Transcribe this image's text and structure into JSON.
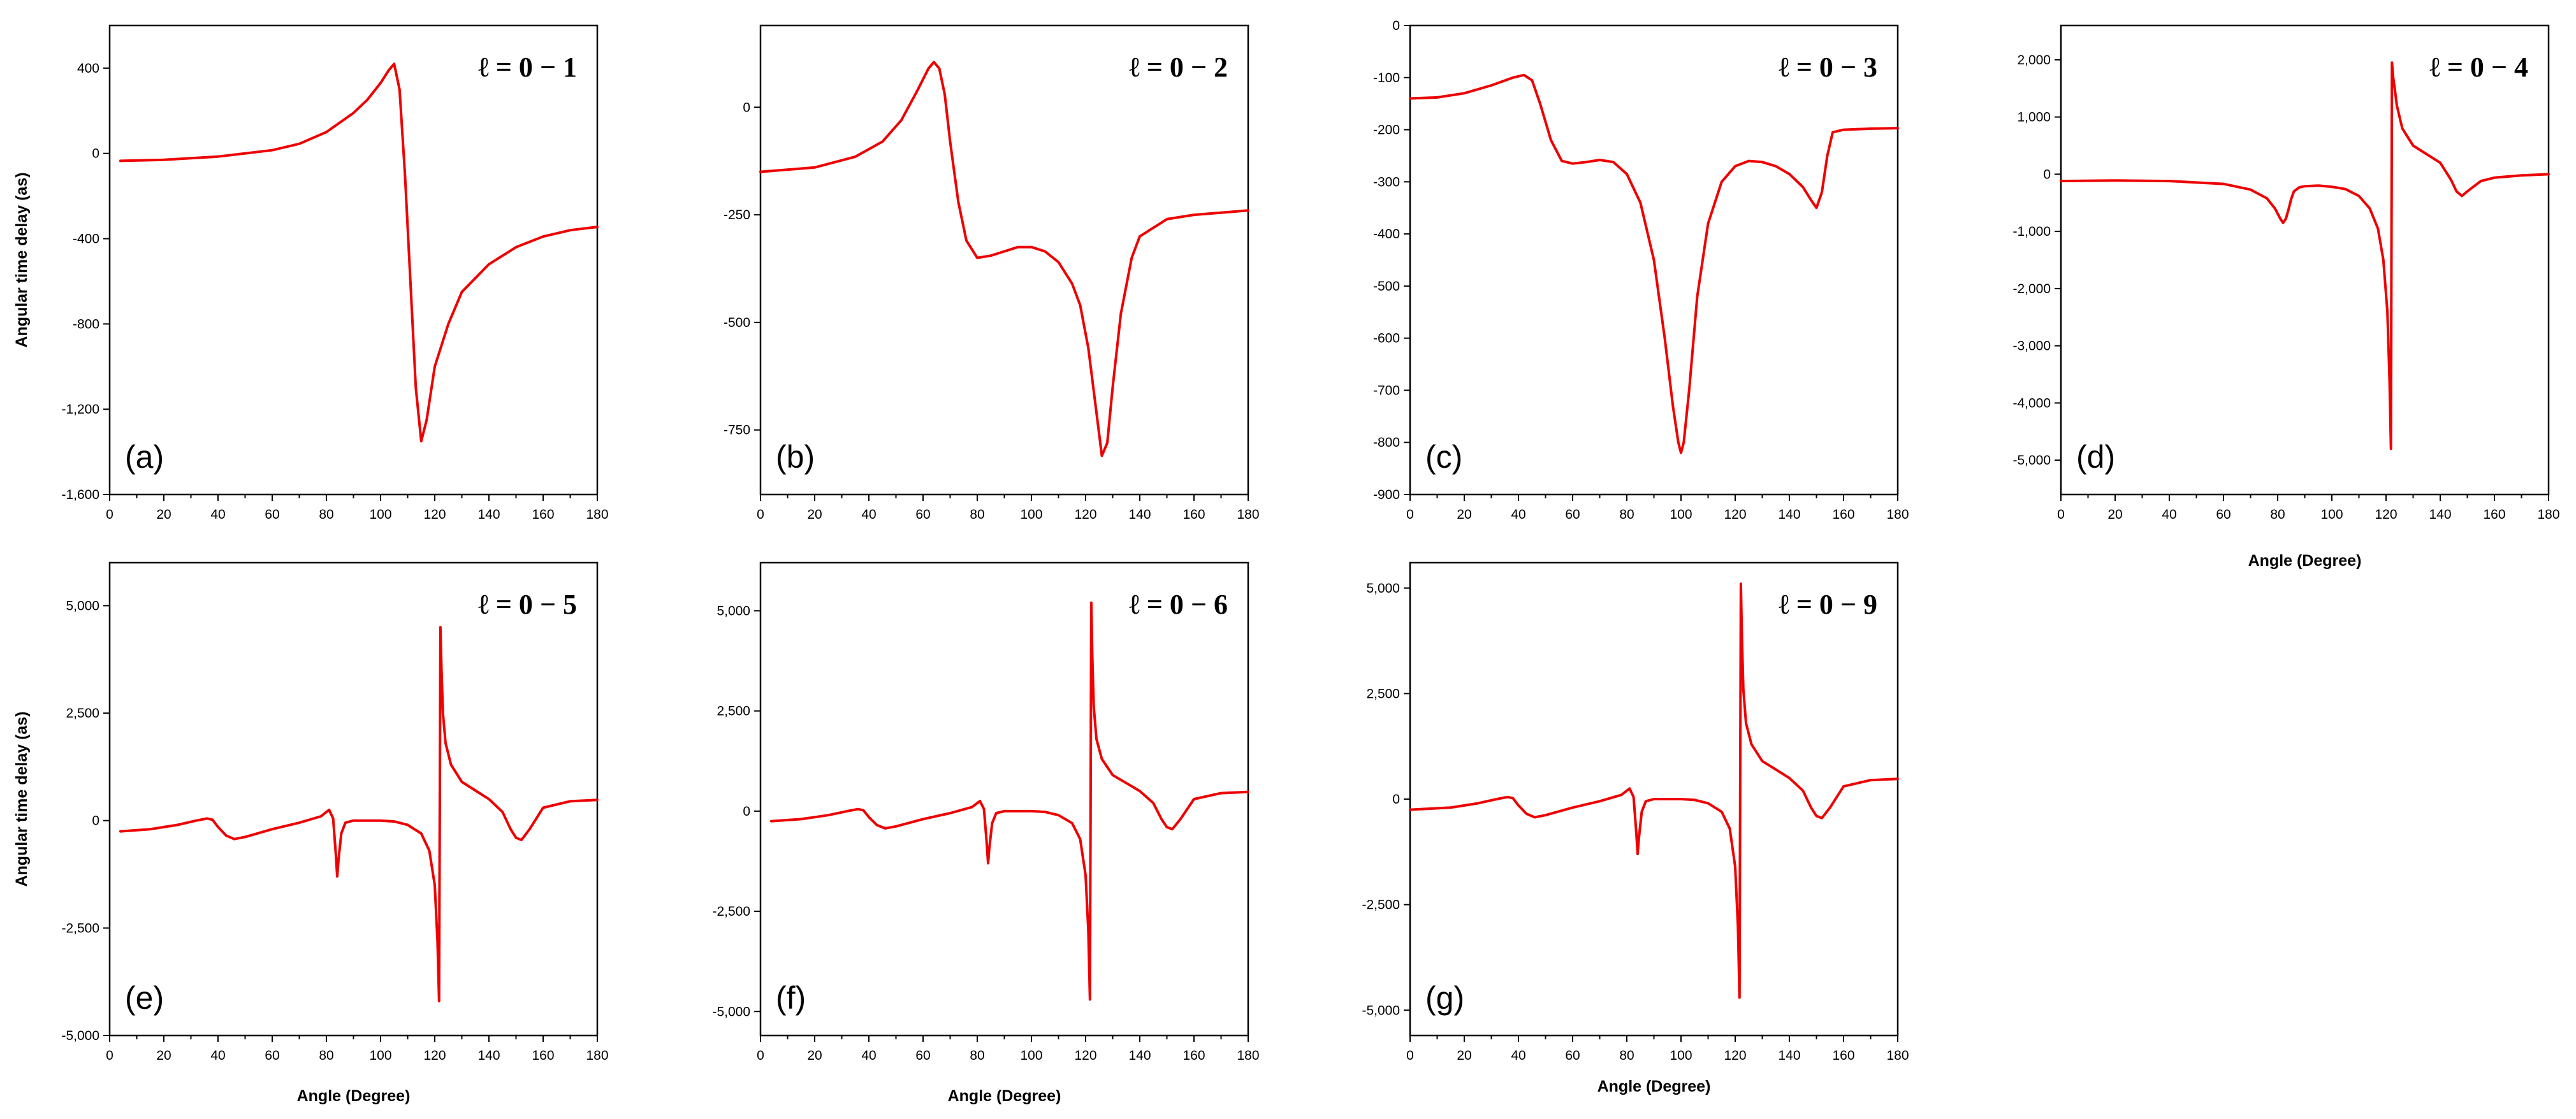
{
  "chart_data": [
    {
      "id": "a",
      "type": "line",
      "panel_label": "(a)",
      "legend": "ℓ = 0 − 1",
      "xlabel": "",
      "ylabel": "Angular time delay (as)",
      "xlim": [
        0,
        180
      ],
      "ylim": [
        -1600,
        600
      ],
      "xticks": [
        0,
        20,
        40,
        60,
        80,
        100,
        120,
        140,
        160,
        180
      ],
      "xtick_labels": [
        "0",
        "20",
        "40",
        "60",
        "80",
        "100",
        "120",
        "140",
        "160",
        "180"
      ],
      "yticks": [
        400,
        0,
        -400,
        -800,
        -1200,
        -1600
      ],
      "ytick_labels": [
        "400",
        "0",
        "-400",
        "-800",
        "-1,200",
        "-1,600"
      ],
      "series": [
        {
          "name": "delay",
          "color": "#ee0000",
          "x": [
            4,
            20,
            40,
            60,
            70,
            80,
            90,
            95,
            100,
            103,
            105,
            107,
            109,
            111,
            113,
            115,
            117,
            120,
            125,
            130,
            140,
            150,
            160,
            170,
            180
          ],
          "y": [
            -35,
            -30,
            -15,
            15,
            45,
            100,
            190,
            250,
            330,
            390,
            420,
            300,
            -100,
            -600,
            -1100,
            -1350,
            -1250,
            -1000,
            -800,
            -650,
            -520,
            -440,
            -390,
            -360,
            -345
          ]
        }
      ]
    },
    {
      "id": "b",
      "type": "line",
      "panel_label": "(b)",
      "legend": "ℓ = 0 − 2",
      "xlabel": "",
      "ylabel": "",
      "xlim": [
        0,
        180
      ],
      "ylim": [
        -900,
        190
      ],
      "xticks": [
        0,
        20,
        40,
        60,
        80,
        100,
        120,
        140,
        160,
        180
      ],
      "xtick_labels": [
        "0",
        "20",
        "40",
        "60",
        "80",
        "100",
        "120",
        "140",
        "160",
        "180"
      ],
      "yticks": [
        0,
        -250,
        -500,
        -750
      ],
      "ytick_labels": [
        "0",
        "-250",
        "-500",
        "-750"
      ],
      "series": [
        {
          "name": "delay",
          "color": "#ee0000",
          "x": [
            0,
            20,
            35,
            45,
            52,
            58,
            62,
            64,
            66,
            68,
            70,
            73,
            76,
            80,
            85,
            90,
            95,
            100,
            105,
            110,
            115,
            118,
            121,
            123,
            125,
            126,
            128,
            130,
            133,
            137,
            140,
            150,
            160,
            170,
            180
          ],
          "y": [
            -150,
            -140,
            -115,
            -80,
            -30,
            40,
            90,
            105,
            90,
            30,
            -80,
            -220,
            -310,
            -350,
            -345,
            -335,
            -325,
            -325,
            -335,
            -360,
            -410,
            -460,
            -560,
            -660,
            -760,
            -810,
            -780,
            -650,
            -480,
            -350,
            -300,
            -260,
            -250,
            -245,
            -240
          ]
        }
      ]
    },
    {
      "id": "c",
      "type": "line",
      "panel_label": "(c)",
      "legend": "ℓ = 0 − 3",
      "xlabel": "",
      "ylabel": "",
      "xlim": [
        0,
        180
      ],
      "ylim": [
        -900,
        0
      ],
      "xticks": [
        0,
        20,
        40,
        60,
        80,
        100,
        120,
        140,
        160,
        180
      ],
      "xtick_labels": [
        "0",
        "20",
        "40",
        "60",
        "80",
        "100",
        "120",
        "140",
        "160",
        "180"
      ],
      "yticks": [
        0,
        -100,
        -200,
        -300,
        -400,
        -500,
        -600,
        -700,
        -800,
        -900
      ],
      "ytick_labels": [
        "0",
        "-100",
        "-200",
        "-300",
        "-400",
        "-500",
        "-600",
        "-700",
        "-800",
        "-900"
      ],
      "series": [
        {
          "name": "delay",
          "color": "#ee0000",
          "x": [
            0,
            10,
            20,
            30,
            38,
            42,
            45,
            48,
            52,
            56,
            60,
            65,
            70,
            75,
            80,
            85,
            90,
            94,
            97,
            99,
            100,
            101,
            103,
            106,
            110,
            115,
            120,
            125,
            130,
            135,
            140,
            145,
            148,
            150,
            152,
            154,
            156,
            160,
            170,
            180
          ],
          "y": [
            -140,
            -138,
            -130,
            -115,
            -100,
            -95,
            -105,
            -150,
            -220,
            -260,
            -265,
            -262,
            -258,
            -262,
            -285,
            -340,
            -450,
            -600,
            -730,
            -800,
            -820,
            -800,
            -700,
            -520,
            -380,
            -300,
            -270,
            -260,
            -262,
            -270,
            -285,
            -310,
            -335,
            -350,
            -320,
            -250,
            -205,
            -200,
            -198,
            -197
          ]
        }
      ]
    },
    {
      "id": "d",
      "type": "line",
      "panel_label": "(d)",
      "legend": "ℓ = 0 − 4",
      "xlabel": "Angle (Degree)",
      "ylabel": "",
      "xlim": [
        0,
        180
      ],
      "ylim": [
        -5600,
        2600
      ],
      "xticks": [
        0,
        20,
        40,
        60,
        80,
        100,
        120,
        140,
        160,
        180
      ],
      "xtick_labels": [
        "0",
        "20",
        "40",
        "60",
        "80",
        "100",
        "120",
        "140",
        "160",
        "180"
      ],
      "yticks": [
        2000,
        1000,
        0,
        -1000,
        -2000,
        -3000,
        -4000,
        -5000
      ],
      "ytick_labels": [
        "2,000",
        "1,000",
        "0",
        "-1,000",
        "-2,000",
        "-3,000",
        "-4,000",
        "-5,000"
      ],
      "series": [
        {
          "name": "delay",
          "color": "#ee0000",
          "x": [
            0,
            20,
            40,
            60,
            70,
            76,
            79,
            81,
            82,
            83,
            84,
            85,
            86,
            88,
            90,
            95,
            100,
            105,
            110,
            114,
            117,
            119,
            120.5,
            121.3,
            121.8,
            122.2,
            122.6,
            123.2,
            124,
            126,
            130,
            135,
            140,
            144,
            146,
            148,
            150,
            155,
            160,
            170,
            180
          ],
          "y": [
            -120,
            -110,
            -120,
            -170,
            -270,
            -420,
            -600,
            -780,
            -850,
            -780,
            -620,
            -430,
            -300,
            -230,
            -210,
            -200,
            -220,
            -260,
            -380,
            -600,
            -950,
            -1500,
            -2400,
            -3600,
            -4800,
            1950,
            1700,
            1500,
            1200,
            800,
            500,
            350,
            200,
            -100,
            -300,
            -380,
            -300,
            -120,
            -60,
            -20,
            0
          ]
        }
      ]
    },
    {
      "id": "e",
      "type": "line",
      "panel_label": "(e)",
      "legend": "ℓ = 0 − 5",
      "xlabel": "Angle (Degree)",
      "ylabel": "Angular time delay (as)",
      "xlim": [
        0,
        180
      ],
      "ylim": [
        -5000,
        6000
      ],
      "xticks": [
        0,
        20,
        40,
        60,
        80,
        100,
        120,
        140,
        160,
        180
      ],
      "xtick_labels": [
        "0",
        "20",
        "40",
        "60",
        "80",
        "100",
        "120",
        "140",
        "160",
        "180"
      ],
      "yticks": [
        5000,
        2500,
        0,
        -2500,
        -5000
      ],
      "ytick_labels": [
        "5,000",
        "2,500",
        "0",
        "-2,500",
        "-5,000"
      ],
      "series": [
        {
          "name": "delay",
          "color": "#ee0000",
          "x": [
            4,
            15,
            25,
            32,
            36,
            38,
            40,
            43,
            46,
            50,
            60,
            70,
            78,
            81,
            82.5,
            83.5,
            84,
            84.5,
            85.5,
            87,
            90,
            95,
            100,
            105,
            110,
            115,
            118,
            120,
            121,
            121.6,
            122.1,
            122.5,
            123,
            124,
            126,
            130,
            135,
            140,
            145,
            148,
            150,
            152,
            155,
            160,
            170,
            180
          ],
          "y": [
            -250,
            -200,
            -100,
            0,
            50,
            20,
            -150,
            -350,
            -430,
            -380,
            -200,
            -50,
            100,
            250,
            50,
            -800,
            -1300,
            -900,
            -300,
            -50,
            0,
            0,
            0,
            -20,
            -100,
            -300,
            -700,
            -1500,
            -2800,
            -4200,
            4500,
            3500,
            2500,
            1800,
            1300,
            900,
            700,
            500,
            200,
            -200,
            -400,
            -450,
            -200,
            300,
            450,
            480
          ]
        }
      ]
    },
    {
      "id": "f",
      "type": "line",
      "panel_label": "(f)",
      "legend": "ℓ = 0 − 6",
      "xlabel": "Angle (Degree)",
      "ylabel": "",
      "xlim": [
        0,
        180
      ],
      "ylim": [
        -5600,
        6200
      ],
      "xticks": [
        0,
        20,
        40,
        60,
        80,
        100,
        120,
        140,
        160,
        180
      ],
      "xtick_labels": [
        "0",
        "20",
        "40",
        "60",
        "80",
        "100",
        "120",
        "140",
        "160",
        "180"
      ],
      "yticks": [
        5000,
        2500,
        0,
        -2500,
        -5000
      ],
      "ytick_labels": [
        "5,000",
        "2,500",
        "0",
        "-2,500",
        "-5,000"
      ],
      "series": [
        {
          "name": "delay",
          "color": "#ee0000",
          "x": [
            4,
            15,
            25,
            32,
            36,
            38,
            40,
            43,
            46,
            50,
            60,
            70,
            78,
            81,
            82.5,
            83.5,
            84,
            84.5,
            85.5,
            87,
            90,
            95,
            100,
            105,
            110,
            115,
            118,
            120,
            121,
            121.6,
            122.1,
            122.5,
            123,
            124,
            126,
            130,
            135,
            140,
            145,
            148,
            150,
            152,
            155,
            160,
            170,
            180
          ],
          "y": [
            -250,
            -200,
            -100,
            0,
            50,
            20,
            -150,
            -350,
            -430,
            -380,
            -200,
            -50,
            100,
            250,
            50,
            -800,
            -1300,
            -900,
            -300,
            -50,
            0,
            0,
            0,
            -20,
            -100,
            -300,
            -700,
            -1600,
            -3000,
            -4700,
            5200,
            3800,
            2600,
            1800,
            1300,
            900,
            700,
            500,
            200,
            -200,
            -400,
            -450,
            -200,
            300,
            450,
            480
          ]
        }
      ]
    },
    {
      "id": "g",
      "type": "line",
      "panel_label": "(g)",
      "legend": "ℓ = 0 − 9",
      "xlabel": "Angle (Degree)",
      "ylabel": "",
      "xlim": [
        0,
        180
      ],
      "ylim": [
        -5600,
        5600
      ],
      "xticks": [
        0,
        20,
        40,
        60,
        80,
        100,
        120,
        140,
        160,
        180
      ],
      "xtick_labels": [
        "0",
        "20",
        "40",
        "60",
        "80",
        "100",
        "120",
        "140",
        "160",
        "180"
      ],
      "yticks": [
        5000,
        2500,
        0,
        -2500,
        -5000
      ],
      "ytick_labels": [
        "5,000",
        "2,500",
        "0",
        "-2,500",
        "-5,000"
      ],
      "series": [
        {
          "name": "delay",
          "color": "#ee0000",
          "x": [
            0,
            15,
            25,
            32,
            36,
            38,
            40,
            43,
            46,
            50,
            60,
            70,
            78,
            81,
            82.5,
            83.5,
            84,
            84.5,
            85.5,
            87,
            90,
            95,
            100,
            105,
            110,
            115,
            118,
            120,
            121,
            121.6,
            122.1,
            122.5,
            123,
            124,
            126,
            130,
            135,
            140,
            145,
            148,
            150,
            152,
            155,
            160,
            170,
            180
          ],
          "y": [
            -250,
            -200,
            -100,
            0,
            50,
            20,
            -150,
            -350,
            -430,
            -380,
            -200,
            -50,
            100,
            250,
            50,
            -800,
            -1300,
            -900,
            -300,
            -50,
            0,
            0,
            0,
            -20,
            -100,
            -300,
            -700,
            -1600,
            -3000,
            -4700,
            5100,
            3800,
            2600,
            1800,
            1300,
            900,
            700,
            500,
            200,
            -200,
            -400,
            -450,
            -200,
            300,
            450,
            480
          ]
        }
      ]
    }
  ]
}
